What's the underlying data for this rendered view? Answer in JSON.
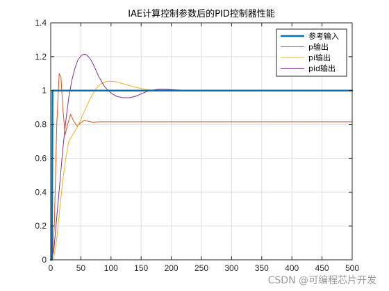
{
  "chart_data": {
    "type": "line",
    "title": "IAE计算控制参数后的PID控制器性能",
    "xlabel": "",
    "ylabel": "",
    "xlim": [
      0,
      500
    ],
    "ylim": [
      0,
      1.4
    ],
    "xticks": [
      0,
      50,
      100,
      150,
      200,
      250,
      300,
      350,
      400,
      450,
      500
    ],
    "yticks": [
      0,
      0.2,
      0.4,
      0.6,
      0.8,
      1,
      1.2,
      1.4
    ],
    "xtick_labels": [
      "0",
      "50",
      "100",
      "150",
      "200",
      "250",
      "300",
      "350",
      "400",
      "450",
      "500"
    ],
    "ytick_labels": [
      "0",
      "0.2",
      "0.4",
      "0.6",
      "0.8",
      "1",
      "1.2",
      "1.4"
    ],
    "grid": true,
    "legend_position": "top-right",
    "series": [
      {
        "name": "参考输入",
        "color": "#0072BD",
        "width": 2.5,
        "x": [
          0,
          2,
          3,
          500
        ],
        "y": [
          0,
          0,
          1,
          1
        ]
      },
      {
        "name": "p输出",
        "color": "#D95319",
        "width": 1,
        "x": [
          0,
          3,
          6,
          10,
          14,
          17,
          20,
          24,
          28,
          33,
          38,
          44,
          50,
          56,
          62,
          70,
          80,
          100,
          150,
          200,
          300,
          400,
          500
        ],
        "y": [
          0,
          0.01,
          0.2,
          0.8,
          1.1,
          1.08,
          0.9,
          0.74,
          0.8,
          0.86,
          0.82,
          0.79,
          0.81,
          0.825,
          0.818,
          0.813,
          0.815,
          0.815,
          0.815,
          0.815,
          0.815,
          0.815,
          0.815
        ]
      },
      {
        "name": "pi输出",
        "color": "#EDB120",
        "width": 1,
        "x": [
          0,
          5,
          10,
          15,
          20,
          25,
          30,
          35,
          40,
          45,
          50,
          55,
          60,
          65,
          70,
          75,
          80,
          85,
          90,
          95,
          100,
          105,
          110,
          115,
          120,
          130,
          140,
          150,
          160,
          170,
          180,
          190,
          200,
          220,
          240,
          260,
          300,
          400,
          500
        ],
        "y": [
          0,
          0.01,
          0.12,
          0.3,
          0.47,
          0.6,
          0.7,
          0.73,
          0.76,
          0.79,
          0.83,
          0.87,
          0.91,
          0.95,
          0.98,
          1.01,
          1.03,
          1.042,
          1.05,
          1.054,
          1.055,
          1.054,
          1.05,
          1.045,
          1.04,
          1.03,
          1.02,
          1.012,
          1.006,
          1.003,
          1.001,
          1.0,
          0.999,
          0.999,
          1.0,
          1.0,
          1.0,
          1.0,
          1.0
        ]
      },
      {
        "name": "pid输出",
        "color": "#7E2F8E",
        "width": 1,
        "x": [
          0,
          5,
          10,
          15,
          20,
          25,
          30,
          35,
          40,
          45,
          50,
          55,
          60,
          65,
          70,
          75,
          80,
          90,
          100,
          110,
          120,
          130,
          140,
          150,
          160,
          170,
          180,
          190,
          200,
          220,
          240,
          260,
          300,
          400,
          500
        ],
        "y": [
          0,
          0.05,
          0.25,
          0.45,
          0.65,
          0.82,
          0.96,
          1.06,
          1.13,
          1.18,
          1.205,
          1.215,
          1.21,
          1.19,
          1.16,
          1.12,
          1.08,
          1.02,
          0.985,
          0.965,
          0.958,
          0.958,
          0.965,
          0.98,
          0.995,
          1.004,
          1.008,
          1.008,
          1.006,
          1.002,
          1.0,
          1.0,
          1.0,
          1.0,
          1.0
        ]
      }
    ]
  },
  "watermark": "CSDN @可编程芯片开发"
}
